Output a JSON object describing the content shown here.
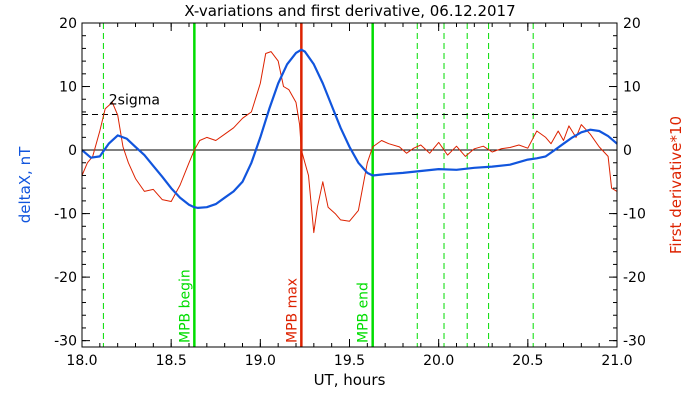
{
  "chart_data": {
    "type": "line",
    "title": "X-variations and first derivative, 06.12.2017",
    "xlabel": "UT, hours",
    "ylabel_left": "deltaX, nT",
    "ylabel_right": "First derivative*10",
    "xlim": [
      18.0,
      21.0
    ],
    "ylim_left": [
      -31,
      20
    ],
    "ylim_right": [
      -31,
      20
    ],
    "x_ticks": [
      18.0,
      18.5,
      19.0,
      19.5,
      20.0,
      20.5,
      21.0
    ],
    "x_tick_labels": [
      "18.0",
      "18.5",
      "19.0",
      "19.5",
      "20.0",
      "20.5",
      "21.0"
    ],
    "y_ticks": [
      20,
      10,
      0,
      -10,
      -20,
      -30
    ],
    "y_tick_labels": [
      "20",
      "10",
      "0",
      "-10",
      "-20",
      "-30"
    ],
    "grid": false,
    "sigma_level": 5.6,
    "sigma_label": "2sigma",
    "zero_line": 0,
    "markers": [
      {
        "x": 18.63,
        "label": "MPB begin",
        "color": "#00dd00"
      },
      {
        "x": 19.23,
        "label": "MPB max",
        "color": "#dd2200"
      },
      {
        "x": 19.63,
        "label": "MPB end",
        "color": "#00dd00"
      }
    ],
    "dashed_verticals": [
      18.12,
      19.88,
      20.03,
      20.16,
      20.28,
      20.53
    ],
    "series": [
      {
        "key": "deltaX",
        "color": "#1155dd",
        "x": [
          18.0,
          18.05,
          18.1,
          18.15,
          18.2,
          18.25,
          18.3,
          18.35,
          18.4,
          18.45,
          18.5,
          18.55,
          18.6,
          18.63,
          18.65,
          18.7,
          18.75,
          18.8,
          18.85,
          18.9,
          18.95,
          19.0,
          19.05,
          19.1,
          19.15,
          19.2,
          19.23,
          19.25,
          19.3,
          19.35,
          19.4,
          19.45,
          19.5,
          19.55,
          19.6,
          19.63,
          19.7,
          19.8,
          19.9,
          20.0,
          20.1,
          20.2,
          20.3,
          20.4,
          20.5,
          20.55,
          20.6,
          20.65,
          20.7,
          20.75,
          20.8,
          20.85,
          20.9,
          20.95,
          21.0
        ],
        "values": [
          0.0,
          -1.2,
          -1.0,
          1.0,
          2.3,
          1.8,
          0.5,
          -0.8,
          -2.5,
          -4.2,
          -6.0,
          -7.5,
          -8.6,
          -9.0,
          -9.1,
          -9.0,
          -8.5,
          -7.5,
          -6.5,
          -5.0,
          -2.0,
          2.0,
          6.5,
          10.5,
          13.5,
          15.3,
          15.8,
          15.5,
          13.5,
          10.5,
          7.0,
          3.5,
          0.5,
          -2.0,
          -3.6,
          -4.0,
          -3.8,
          -3.6,
          -3.3,
          -3.0,
          -3.1,
          -2.8,
          -2.6,
          -2.3,
          -1.5,
          -1.3,
          -1.0,
          0.0,
          1.0,
          2.0,
          2.8,
          3.2,
          3.0,
          2.2,
          1.0
        ]
      },
      {
        "key": "derivative",
        "color": "#dd2200",
        "x": [
          18.0,
          18.03,
          18.06,
          18.1,
          18.13,
          18.17,
          18.2,
          18.23,
          18.26,
          18.3,
          18.35,
          18.4,
          18.45,
          18.5,
          18.55,
          18.6,
          18.63,
          18.66,
          18.7,
          18.75,
          18.8,
          18.85,
          18.9,
          18.95,
          19.0,
          19.03,
          19.06,
          19.1,
          19.13,
          19.16,
          19.2,
          19.22,
          19.23,
          19.25,
          19.27,
          19.3,
          19.32,
          19.35,
          19.38,
          19.42,
          19.45,
          19.5,
          19.55,
          19.6,
          19.63,
          19.68,
          19.72,
          19.78,
          19.82,
          19.86,
          19.9,
          19.95,
          20.0,
          20.05,
          20.1,
          20.15,
          20.2,
          20.25,
          20.3,
          20.35,
          20.4,
          20.45,
          20.5,
          20.55,
          20.6,
          20.63,
          20.67,
          20.7,
          20.73,
          20.77,
          20.8,
          20.85,
          20.9,
          20.95,
          20.97,
          21.0
        ],
        "values": [
          -4.0,
          -2.0,
          -1.0,
          3.0,
          6.5,
          7.5,
          5.5,
          0.5,
          -2.0,
          -4.5,
          -6.5,
          -6.2,
          -7.8,
          -8.1,
          -5.5,
          -2.0,
          0.0,
          1.5,
          2.0,
          1.5,
          2.5,
          3.5,
          5.0,
          6.0,
          10.5,
          15.2,
          15.5,
          14.0,
          10.0,
          9.5,
          7.5,
          4.0,
          0.0,
          -2.0,
          -4.0,
          -13.0,
          -9.0,
          -5.0,
          -9.0,
          -10.0,
          -11.0,
          -11.2,
          -9.5,
          -2.0,
          0.5,
          1.5,
          1.0,
          0.5,
          -0.5,
          0.3,
          0.8,
          -0.5,
          1.2,
          -0.8,
          0.6,
          -1.0,
          0.2,
          0.6,
          -0.3,
          0.2,
          0.4,
          0.8,
          0.3,
          3.0,
          2.0,
          1.0,
          3.0,
          1.5,
          3.8,
          2.0,
          4.0,
          2.5,
          0.5,
          -1.0,
          -6.0,
          -6.5
        ]
      }
    ]
  }
}
